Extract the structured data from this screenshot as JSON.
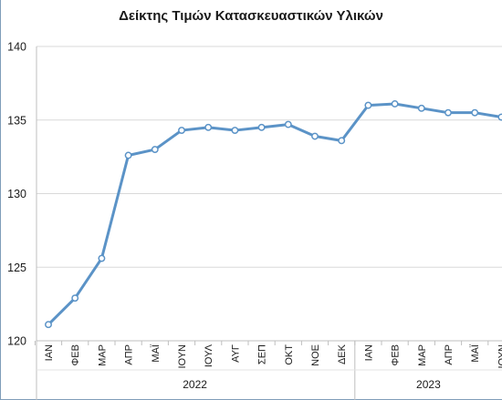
{
  "chart_data": {
    "type": "line",
    "title": "Δείκτης Τιμών Κατασκευαστικών Υλικών",
    "xlabel": "",
    "ylabel": "",
    "ylim": [
      120,
      140
    ],
    "yticks": [
      "120",
      "125",
      "130",
      "135",
      "140"
    ],
    "grid": true,
    "legend": "none",
    "categories": [
      "ΙΑΝ",
      "ΦΕΒ",
      "ΜΑΡ",
      "ΑΠΡ",
      "ΜΑΪ",
      "ΙΟΥΝ",
      "ΙΟΥΛ",
      "ΑΥΓ",
      "ΣΕΠ",
      "ΟΚΤ",
      "ΝΟΕ",
      "ΔΕΚ",
      "ΙΑΝ",
      "ΦΕΒ",
      "ΜΑΡ",
      "ΑΠΡ",
      "ΜΑΪ",
      "ΙΟΥΝ"
    ],
    "groups": [
      {
        "label": "2022",
        "count": 12
      },
      {
        "label": "2023",
        "count": 6
      }
    ],
    "series": [
      {
        "color": "#5b93c7",
        "values": [
          121.1,
          122.9,
          125.6,
          132.6,
          133.0,
          134.3,
          134.5,
          134.3,
          134.5,
          134.7,
          133.9,
          133.6,
          136.0,
          136.1,
          135.8,
          135.5,
          135.5,
          135.2
        ]
      }
    ]
  }
}
